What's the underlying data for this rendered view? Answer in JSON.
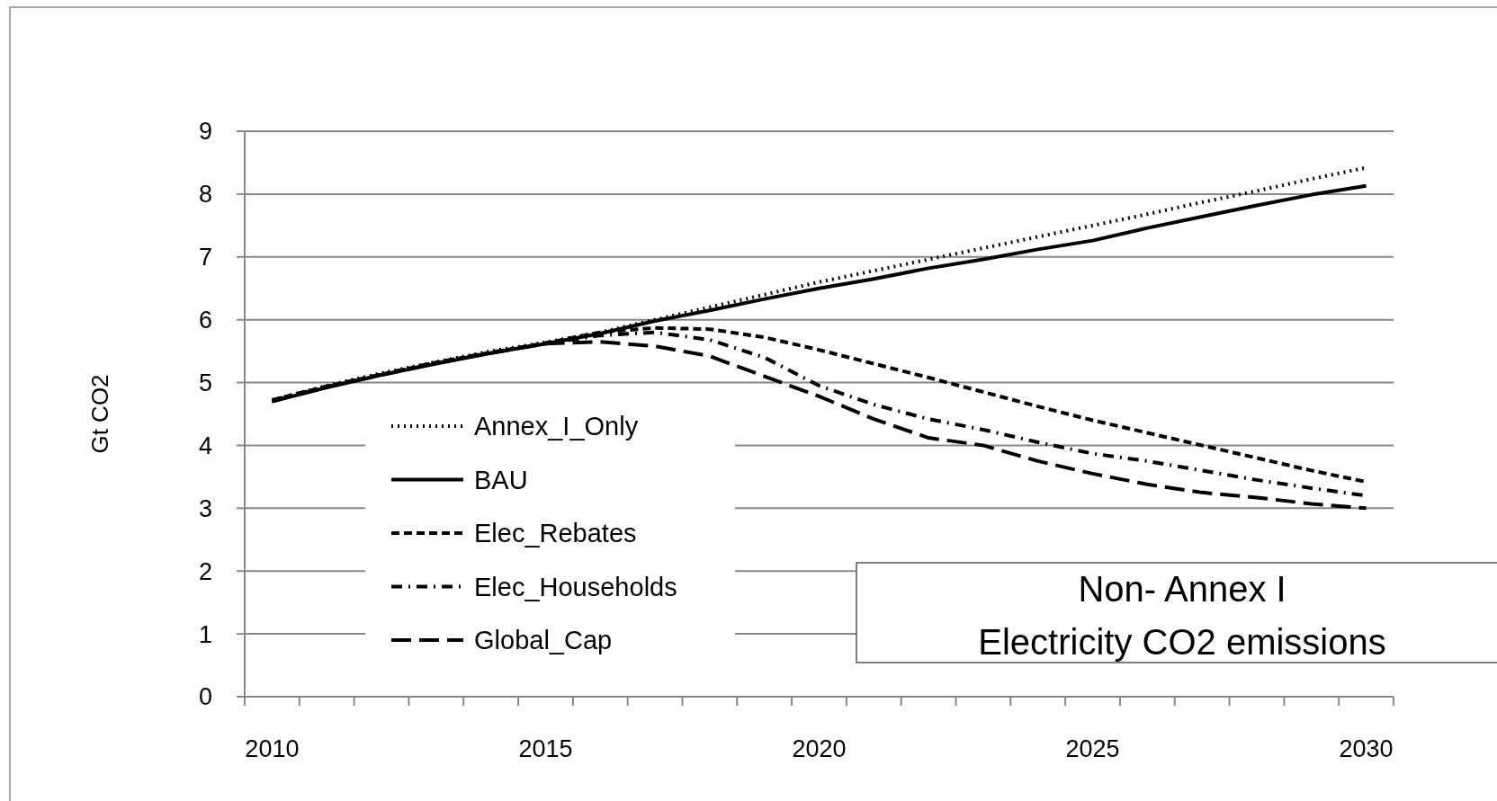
{
  "chart_data": {
    "type": "line",
    "title": "Non- Annex I\nElectricity CO2 emissions",
    "ylabel": "Gt CO2",
    "categories": [
      "2010",
      null,
      null,
      null,
      null,
      "2015",
      null,
      null,
      null,
      null,
      "2020",
      null,
      null,
      null,
      null,
      "2025",
      null,
      null,
      null,
      null,
      "2030"
    ],
    "ylim": [
      0,
      9
    ],
    "yticks": [
      0,
      1,
      2,
      3,
      4,
      5,
      6,
      7,
      8,
      9
    ],
    "grid": "y",
    "legend": "bottom left",
    "marker": "none",
    "series": [
      {
        "name": "Annex_I_Only",
        "color": "#000000",
        "line_style": "dotted",
        "values": [
          4.72,
          4.95,
          5.15,
          5.33,
          5.5,
          5.64,
          5.8,
          6.0,
          6.2,
          6.4,
          6.6,
          6.78,
          6.96,
          7.14,
          7.32,
          7.5,
          7.68,
          7.87,
          8.05,
          8.24,
          8.42
        ]
      },
      {
        "name": "BAU",
        "color": "#000000",
        "line_style": "solid",
        "values": [
          4.7,
          4.92,
          5.12,
          5.3,
          5.47,
          5.62,
          5.78,
          5.98,
          6.15,
          6.33,
          6.5,
          6.65,
          6.82,
          6.96,
          7.12,
          7.26,
          7.46,
          7.64,
          7.82,
          7.99,
          8.13
        ]
      },
      {
        "name": "Elec_Rebates",
        "color": "#000000",
        "line_style": "dashed",
        "values": [
          4.72,
          4.94,
          5.13,
          5.32,
          5.48,
          5.63,
          5.8,
          5.87,
          5.85,
          5.72,
          5.52,
          5.3,
          5.08,
          4.85,
          4.62,
          4.4,
          4.2,
          4.0,
          3.8,
          3.6,
          3.42
        ]
      },
      {
        "name": "Elec_Households",
        "color": "#000000",
        "line_style": "dashdot",
        "values": [
          4.72,
          4.94,
          5.13,
          5.32,
          5.48,
          5.62,
          5.75,
          5.8,
          5.68,
          5.4,
          4.95,
          4.65,
          4.42,
          4.25,
          4.05,
          3.87,
          3.75,
          3.6,
          3.45,
          3.32,
          3.2
        ]
      },
      {
        "name": "Global_Cap",
        "color": "#000000",
        "line_style": "longdash",
        "values": [
          4.7,
          4.93,
          5.12,
          5.31,
          5.47,
          5.62,
          5.65,
          5.58,
          5.42,
          5.1,
          4.78,
          4.42,
          4.12,
          4.0,
          3.75,
          3.55,
          3.38,
          3.25,
          3.17,
          3.07,
          3.0
        ]
      }
    ]
  }
}
